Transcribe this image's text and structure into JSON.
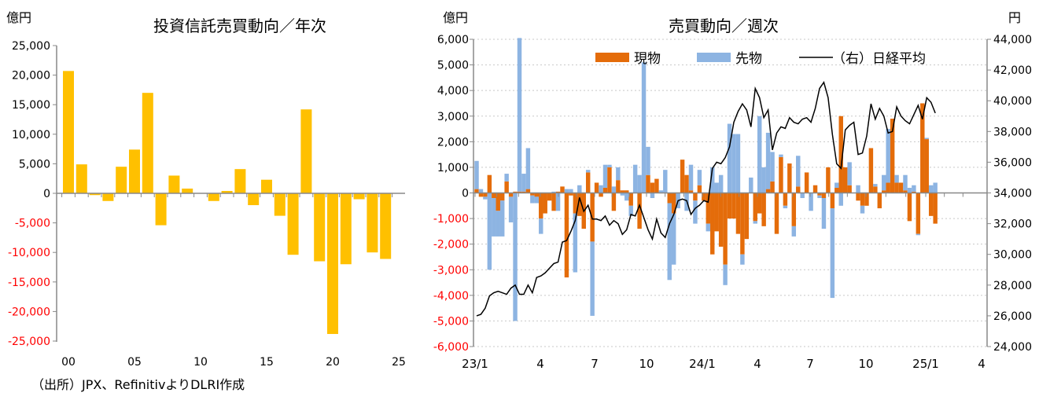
{
  "source_note": "（出所）JPX、RefinitivよりDLRI作成",
  "colors": {
    "annual_bar": "#FFC000",
    "spot": "#E46C0A",
    "futures": "#8DB4E2",
    "nikkei": "#000000",
    "negative_tick": "#FF0000"
  },
  "chart_data": [
    {
      "type": "bar",
      "title": "投資信託売買動向／年次",
      "ylabel": "億円",
      "ylim": [
        -25000,
        25000
      ],
      "yticks": [
        "25,000",
        "20,000",
        "15,000",
        "10,000",
        "5,000",
        "0",
        "-5,000",
        "-10,000",
        "-15,000",
        "-20,000",
        "-25,000"
      ],
      "ytick_values": [
        25000,
        20000,
        15000,
        10000,
        5000,
        0,
        -5000,
        -10000,
        -15000,
        -20000,
        -25000
      ],
      "xtick_labels": [
        "00",
        "05",
        "10",
        "15",
        "20",
        "25"
      ],
      "categories": [
        "2000",
        "2001",
        "2002",
        "2003",
        "2004",
        "2005",
        "2006",
        "2007",
        "2008",
        "2009",
        "2010",
        "2011",
        "2012",
        "2013",
        "2014",
        "2015",
        "2016",
        "2017",
        "2018",
        "2019",
        "2020",
        "2021",
        "2022",
        "2023",
        "2024"
      ],
      "values": [
        20700,
        4900,
        -300,
        -1300,
        4500,
        7400,
        17000,
        -5400,
        3000,
        800,
        0,
        -1300,
        400,
        4100,
        -2000,
        2300,
        -3800,
        -10400,
        14200,
        -11500,
        -23800,
        -12000,
        -1000,
        -10000,
        -11100
      ],
      "grid": false
    },
    {
      "type": "bar+line",
      "title": "売買動向／週次",
      "ylabel": "億円",
      "y2label": "円",
      "ylim": [
        -6000,
        6000
      ],
      "y2lim": [
        24000,
        44000
      ],
      "yticks": [
        "6,000",
        "5,000",
        "4,000",
        "3,000",
        "2,000",
        "1,000",
        "0",
        "-1,000",
        "-2,000",
        "-3,000",
        "-4,000",
        "-5,000",
        "-6,000"
      ],
      "ytick_values": [
        6000,
        5000,
        4000,
        3000,
        2000,
        1000,
        0,
        -1000,
        -2000,
        -3000,
        -4000,
        -5000,
        -6000
      ],
      "y2ticks": [
        "44,000",
        "42,000",
        "40,000",
        "38,000",
        "36,000",
        "34,000",
        "32,000",
        "30,000",
        "28,000",
        "26,000",
        "24,000"
      ],
      "y2tick_values": [
        44000,
        42000,
        40000,
        38000,
        36000,
        34000,
        32000,
        30000,
        28000,
        26000,
        24000
      ],
      "xtick_labels": [
        "23/1",
        "4",
        "7",
        "10",
        "24/1",
        "4",
        "7",
        "10",
        "25/1",
        "4"
      ],
      "legend": [
        "現物",
        "先物",
        "（右）日経平均"
      ],
      "legend_position": "top",
      "grid": true,
      "series": [
        {
          "name": "現物",
          "stacked": true,
          "values": [
            150,
            -150,
            -150,
            700,
            -200,
            -700,
            -300,
            450,
            -150,
            50,
            50,
            50,
            150,
            -100,
            -150,
            -1000,
            -800,
            -300,
            -700,
            50,
            250,
            -3300,
            -100,
            -800,
            -900,
            -1400,
            800,
            -1900,
            400,
            -150,
            200,
            1000,
            -700,
            500,
            100,
            100,
            -500,
            0,
            -1400,
            0,
            700,
            400,
            550,
            0,
            0,
            -400,
            -800,
            0,
            1300,
            700,
            100,
            -300,
            300,
            -300,
            -1200,
            -2400,
            -1500,
            -2100,
            -2800,
            -1000,
            -1000,
            -1600,
            -2400,
            -1800,
            0,
            -1100,
            -800,
            -1300,
            150,
            450,
            -1600,
            1400,
            -500,
            1150,
            -1300,
            250,
            0,
            800,
            0,
            300,
            -100,
            -200,
            1000,
            -600,
            200,
            3000,
            1000,
            300,
            0,
            -300,
            -500,
            -500,
            1750,
            250,
            -600,
            100,
            400,
            2900,
            400,
            400,
            100,
            -1100,
            50,
            -1600,
            3500,
            2100,
            -900,
            -1200
          ]
        },
        {
          "name": "先物",
          "stacked": true,
          "values": [
            1100,
            150,
            -100,
            -3000,
            -1500,
            -1000,
            -1400,
            300,
            -1000,
            -5000,
            6000,
            700,
            1600,
            -300,
            -250,
            -600,
            0,
            0,
            50,
            -700,
            0,
            150,
            150,
            -2300,
            300,
            0,
            100,
            -2900,
            0,
            300,
            900,
            100,
            250,
            500,
            -100,
            -300,
            -400,
            1100,
            700,
            5100,
            1100,
            -200,
            0,
            100,
            900,
            -3000,
            -2000,
            -600,
            0,
            -700,
            1000,
            -900,
            600,
            0,
            -300,
            1000,
            400,
            700,
            -800,
            2700,
            2300,
            2300,
            -400,
            0,
            600,
            -100,
            3000,
            1000,
            2200,
            1150,
            0,
            100,
            -100,
            0,
            -400,
            1200,
            -200,
            0,
            -700,
            0,
            -100,
            -1200,
            0,
            -3500,
            200,
            -500,
            0,
            900,
            0,
            300,
            -300,
            0,
            0,
            100,
            0,
            600,
            2100,
            0,
            300,
            0,
            600,
            200,
            250,
            -50,
            0,
            50,
            300,
            400
          ]
        },
        {
          "name": "（右）日経平均",
          "axis": "right",
          "values": [
            26000,
            26100,
            26500,
            27300,
            27500,
            27600,
            27500,
            27400,
            27800,
            28000,
            27400,
            27400,
            28000,
            27500,
            28500,
            28600,
            28800,
            29100,
            29400,
            29500,
            30800,
            30900,
            31500,
            32200,
            33700,
            32800,
            33200,
            32300,
            32300,
            32200,
            32500,
            31900,
            32200,
            32000,
            31300,
            31600,
            32600,
            32500,
            33200,
            32400,
            31600,
            31000,
            32300,
            31400,
            31100,
            32000,
            32600,
            33500,
            33600,
            33500,
            32600,
            33000,
            33200,
            33500,
            33400,
            35600,
            36000,
            35900,
            36300,
            37000,
            38600,
            39300,
            39800,
            39400,
            38300,
            40800,
            40200,
            38900,
            39400,
            36800,
            37900,
            38300,
            38200,
            38900,
            38600,
            38500,
            38800,
            38900,
            38600,
            39500,
            40800,
            41200,
            40200,
            37800,
            35900,
            35600,
            38100,
            38400,
            38600,
            36500,
            36600,
            37700,
            39800,
            38800,
            39500,
            39000,
            37900,
            38000,
            39600,
            39000,
            38700,
            38500,
            39100,
            39700,
            38800,
            40200,
            39900,
            39200
          ]
        }
      ]
    }
  ]
}
